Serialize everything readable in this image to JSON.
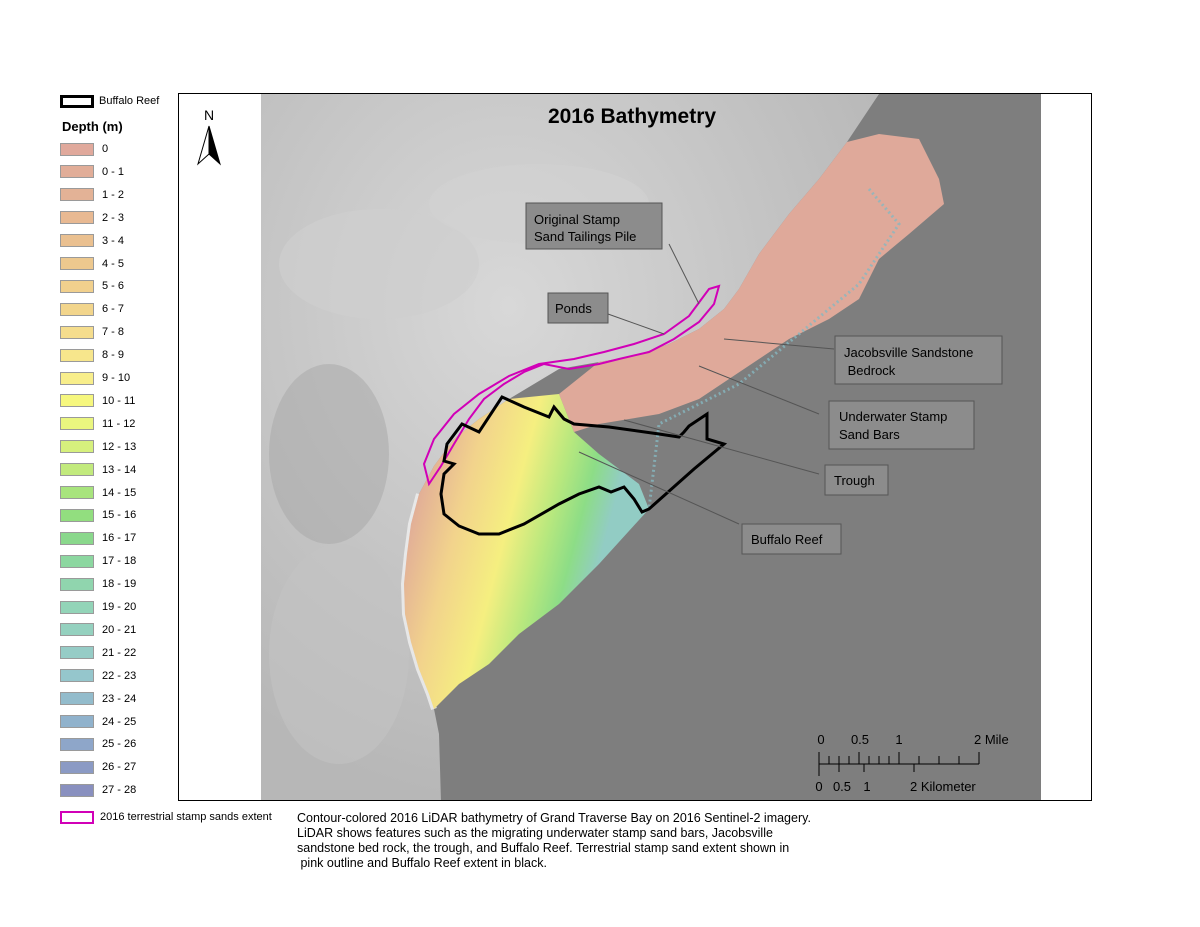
{
  "map": {
    "title": "2016 Bathymetry",
    "north_arrow_label": "N",
    "annotations": [
      {
        "id": "stamp-pile",
        "lines": [
          "Original Stamp",
          "Sand Tailings Pile"
        ]
      },
      {
        "id": "ponds",
        "lines": [
          "Ponds"
        ]
      },
      {
        "id": "jacobsville",
        "lines": [
          "Jacobsville Sandstone",
          " Bedrock"
        ]
      },
      {
        "id": "underwater-bars",
        "lines": [
          "Underwater Stamp",
          "Sand Bars"
        ]
      },
      {
        "id": "trough",
        "lines": [
          "Trough"
        ]
      },
      {
        "id": "buffalo-reef",
        "lines": [
          "Buffalo Reef"
        ]
      }
    ],
    "scale_bar": {
      "mile_labels": [
        "0",
        "0.5",
        "1",
        "2 Mile"
      ],
      "km_labels": [
        "0",
        "0.5",
        "1",
        "2 Kilometer"
      ]
    }
  },
  "legend": {
    "reef_label": "Buffalo Reef",
    "depth_title": "Depth (m)",
    "depth_classes": [
      {
        "label": "0",
        "color": "#e0a99c"
      },
      {
        "label": "0 - 1",
        "color": "#e1ad98"
      },
      {
        "label": "1 - 2",
        "color": "#e3b296"
      },
      {
        "label": "2 - 3",
        "color": "#e8b992"
      },
      {
        "label": "3 - 4",
        "color": "#eac090"
      },
      {
        "label": "4 - 5",
        "color": "#edc88e"
      },
      {
        "label": "5 - 6",
        "color": "#f1d08d"
      },
      {
        "label": "6 - 7",
        "color": "#f2d58c"
      },
      {
        "label": "7 - 8",
        "color": "#f5dd8d"
      },
      {
        "label": "8 - 9",
        "color": "#f7e68c"
      },
      {
        "label": "9 - 10",
        "color": "#f8ee8b"
      },
      {
        "label": "10 - 11",
        "color": "#f6f77e"
      },
      {
        "label": "11 - 12",
        "color": "#eaf67f"
      },
      {
        "label": "12 - 13",
        "color": "#d6f07d"
      },
      {
        "label": "13 - 14",
        "color": "#c2ea7d"
      },
      {
        "label": "14 - 15",
        "color": "#a8e47d"
      },
      {
        "label": "15 - 16",
        "color": "#92de7f"
      },
      {
        "label": "16 - 17",
        "color": "#8ad88c"
      },
      {
        "label": "17 - 18",
        "color": "#8cd7a0"
      },
      {
        "label": "18 - 19",
        "color": "#90d5ae"
      },
      {
        "label": "19 - 20",
        "color": "#93d4b8"
      },
      {
        "label": "20 - 21",
        "color": "#95d1bf"
      },
      {
        "label": "21 - 22",
        "color": "#96ccc6"
      },
      {
        "label": "22 - 23",
        "color": "#95c6cc"
      },
      {
        "label": "23 - 24",
        "color": "#93bccc"
      },
      {
        "label": "24 - 25",
        "color": "#90b2cc"
      },
      {
        "label": "25 - 26",
        "color": "#8ea6c9"
      },
      {
        "label": "26 - 27",
        "color": "#8b9ac4"
      },
      {
        "label": "27 - 28",
        "color": "#8990bf"
      }
    ],
    "sand_label": "2016 terrestrial stamp sands extent",
    "reef_outline_color": "#000000",
    "sand_outline_color": "#d100b7"
  },
  "caption": [
    "Contour-colored 2016 LiDAR bathymetry of Grand Traverse Bay on 2016 Sentinel-2 imagery.",
    "LiDAR shows features such as the migrating underwater stamp sand bars, Jacobsville",
    "sandstone bed rock, the trough, and Buffalo Reef. Terrestrial stamp sand extent shown in",
    " pink outline and Buffalo Reef extent in black."
  ]
}
